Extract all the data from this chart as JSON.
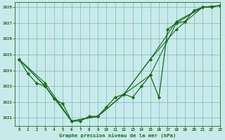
{
  "title": "Graphe pression niveau de la mer (hPa)",
  "background_color": "#c8eaea",
  "grid_color": "#7ab8b8",
  "line_color": "#1a6b1a",
  "xlim": [
    -0.5,
    23
  ],
  "ylim": [
    1020.5,
    1028.3
  ],
  "yticks": [
    1021,
    1022,
    1023,
    1024,
    1025,
    1026,
    1027,
    1028
  ],
  "xticks": [
    0,
    1,
    2,
    3,
    4,
    5,
    6,
    7,
    8,
    9,
    10,
    11,
    12,
    13,
    14,
    15,
    16,
    17,
    18,
    19,
    20,
    21,
    22,
    23
  ],
  "series_hourly": {
    "x": [
      0,
      1,
      2,
      3,
      4,
      5,
      6,
      7,
      8,
      9,
      10,
      11,
      12,
      13,
      14,
      15,
      16,
      17,
      18,
      19,
      20,
      21,
      22,
      23
    ],
    "y": [
      1024.7,
      1023.8,
      1023.2,
      1023.0,
      1022.2,
      1021.9,
      1020.8,
      1020.8,
      1021.1,
      1021.1,
      1021.7,
      1022.3,
      1022.5,
      1022.3,
      1023.0,
      1023.7,
      1022.3,
      1026.6,
      1027.0,
      1027.1,
      1027.8,
      1028.0,
      1028.0,
      1028.1
    ]
  },
  "series_synop1": {
    "x": [
      0,
      3,
      6,
      9,
      12,
      15,
      18,
      21,
      23
    ],
    "y": [
      1024.7,
      1023.0,
      1020.8,
      1021.1,
      1022.5,
      1023.7,
      1027.0,
      1028.0,
      1028.1
    ]
  },
  "series_synop2": {
    "x": [
      0,
      3,
      6,
      9,
      12,
      15,
      18,
      21,
      23
    ],
    "y": [
      1024.7,
      1023.0,
      1020.8,
      1021.1,
      1022.5,
      1024.7,
      1027.1,
      1028.0,
      1028.1
    ]
  },
  "series_synop3": {
    "x": [
      0,
      3,
      6,
      9,
      12,
      15,
      18,
      21,
      23
    ],
    "y": [
      1024.7,
      1023.2,
      1020.8,
      1021.1,
      1022.5,
      1024.7,
      1026.6,
      1028.0,
      1028.1
    ]
  }
}
